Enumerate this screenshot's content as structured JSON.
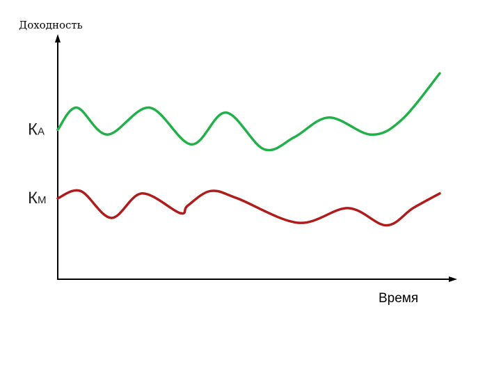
{
  "chart_data": {
    "type": "line",
    "xlabel": "Время",
    "ylabel": "Доходность",
    "grid": false,
    "legend": "none",
    "xlim": [
      0,
      100
    ],
    "ylim": [
      0,
      100
    ],
    "series": [
      {
        "label_main": "К",
        "label_sub": "А",
        "color": "#22b04b",
        "x": [
          0,
          5,
          13,
          24,
          35,
          44,
          54,
          62,
          71,
          82,
          90,
          100
        ],
        "y": [
          61,
          70,
          59,
          70,
          55,
          68,
          53,
          58,
          66,
          59,
          65,
          84
        ]
      },
      {
        "label_main": "К",
        "label_sub": "М",
        "color": "#b01b1b",
        "x": [
          0,
          6,
          14,
          22,
          32,
          34,
          40,
          47,
          63,
          76,
          86,
          93,
          100
        ],
        "y": [
          33,
          36,
          25,
          35,
          27,
          30,
          36,
          33,
          23,
          29,
          22,
          29,
          35
        ]
      }
    ]
  }
}
